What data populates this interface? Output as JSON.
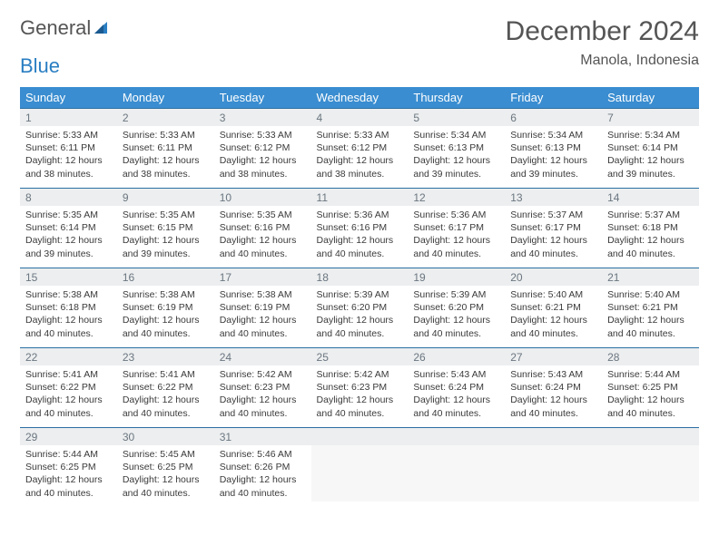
{
  "logo": {
    "text1": "General",
    "text2": "Blue"
  },
  "title": "December 2024",
  "location": "Manola, Indonesia",
  "colors": {
    "header_bg": "#3a8dd0",
    "header_text": "#ffffff",
    "daynum_bg": "#eceeef",
    "daynum_text": "#6b7680",
    "border": "#2a6fa3",
    "logo_blue": "#2a7ec2"
  },
  "weekdays": [
    "Sunday",
    "Monday",
    "Tuesday",
    "Wednesday",
    "Thursday",
    "Friday",
    "Saturday"
  ],
  "grid": [
    [
      {
        "n": "1",
        "sr": "Sunrise: 5:33 AM",
        "ss": "Sunset: 6:11 PM",
        "dl": "Daylight: 12 hours and 38 minutes."
      },
      {
        "n": "2",
        "sr": "Sunrise: 5:33 AM",
        "ss": "Sunset: 6:11 PM",
        "dl": "Daylight: 12 hours and 38 minutes."
      },
      {
        "n": "3",
        "sr": "Sunrise: 5:33 AM",
        "ss": "Sunset: 6:12 PM",
        "dl": "Daylight: 12 hours and 38 minutes."
      },
      {
        "n": "4",
        "sr": "Sunrise: 5:33 AM",
        "ss": "Sunset: 6:12 PM",
        "dl": "Daylight: 12 hours and 38 minutes."
      },
      {
        "n": "5",
        "sr": "Sunrise: 5:34 AM",
        "ss": "Sunset: 6:13 PM",
        "dl": "Daylight: 12 hours and 39 minutes."
      },
      {
        "n": "6",
        "sr": "Sunrise: 5:34 AM",
        "ss": "Sunset: 6:13 PM",
        "dl": "Daylight: 12 hours and 39 minutes."
      },
      {
        "n": "7",
        "sr": "Sunrise: 5:34 AM",
        "ss": "Sunset: 6:14 PM",
        "dl": "Daylight: 12 hours and 39 minutes."
      }
    ],
    [
      {
        "n": "8",
        "sr": "Sunrise: 5:35 AM",
        "ss": "Sunset: 6:14 PM",
        "dl": "Daylight: 12 hours and 39 minutes."
      },
      {
        "n": "9",
        "sr": "Sunrise: 5:35 AM",
        "ss": "Sunset: 6:15 PM",
        "dl": "Daylight: 12 hours and 39 minutes."
      },
      {
        "n": "10",
        "sr": "Sunrise: 5:35 AM",
        "ss": "Sunset: 6:16 PM",
        "dl": "Daylight: 12 hours and 40 minutes."
      },
      {
        "n": "11",
        "sr": "Sunrise: 5:36 AM",
        "ss": "Sunset: 6:16 PM",
        "dl": "Daylight: 12 hours and 40 minutes."
      },
      {
        "n": "12",
        "sr": "Sunrise: 5:36 AM",
        "ss": "Sunset: 6:17 PM",
        "dl": "Daylight: 12 hours and 40 minutes."
      },
      {
        "n": "13",
        "sr": "Sunrise: 5:37 AM",
        "ss": "Sunset: 6:17 PM",
        "dl": "Daylight: 12 hours and 40 minutes."
      },
      {
        "n": "14",
        "sr": "Sunrise: 5:37 AM",
        "ss": "Sunset: 6:18 PM",
        "dl": "Daylight: 12 hours and 40 minutes."
      }
    ],
    [
      {
        "n": "15",
        "sr": "Sunrise: 5:38 AM",
        "ss": "Sunset: 6:18 PM",
        "dl": "Daylight: 12 hours and 40 minutes."
      },
      {
        "n": "16",
        "sr": "Sunrise: 5:38 AM",
        "ss": "Sunset: 6:19 PM",
        "dl": "Daylight: 12 hours and 40 minutes."
      },
      {
        "n": "17",
        "sr": "Sunrise: 5:38 AM",
        "ss": "Sunset: 6:19 PM",
        "dl": "Daylight: 12 hours and 40 minutes."
      },
      {
        "n": "18",
        "sr": "Sunrise: 5:39 AM",
        "ss": "Sunset: 6:20 PM",
        "dl": "Daylight: 12 hours and 40 minutes."
      },
      {
        "n": "19",
        "sr": "Sunrise: 5:39 AM",
        "ss": "Sunset: 6:20 PM",
        "dl": "Daylight: 12 hours and 40 minutes."
      },
      {
        "n": "20",
        "sr": "Sunrise: 5:40 AM",
        "ss": "Sunset: 6:21 PM",
        "dl": "Daylight: 12 hours and 40 minutes."
      },
      {
        "n": "21",
        "sr": "Sunrise: 5:40 AM",
        "ss": "Sunset: 6:21 PM",
        "dl": "Daylight: 12 hours and 40 minutes."
      }
    ],
    [
      {
        "n": "22",
        "sr": "Sunrise: 5:41 AM",
        "ss": "Sunset: 6:22 PM",
        "dl": "Daylight: 12 hours and 40 minutes."
      },
      {
        "n": "23",
        "sr": "Sunrise: 5:41 AM",
        "ss": "Sunset: 6:22 PM",
        "dl": "Daylight: 12 hours and 40 minutes."
      },
      {
        "n": "24",
        "sr": "Sunrise: 5:42 AM",
        "ss": "Sunset: 6:23 PM",
        "dl": "Daylight: 12 hours and 40 minutes."
      },
      {
        "n": "25",
        "sr": "Sunrise: 5:42 AM",
        "ss": "Sunset: 6:23 PM",
        "dl": "Daylight: 12 hours and 40 minutes."
      },
      {
        "n": "26",
        "sr": "Sunrise: 5:43 AM",
        "ss": "Sunset: 6:24 PM",
        "dl": "Daylight: 12 hours and 40 minutes."
      },
      {
        "n": "27",
        "sr": "Sunrise: 5:43 AM",
        "ss": "Sunset: 6:24 PM",
        "dl": "Daylight: 12 hours and 40 minutes."
      },
      {
        "n": "28",
        "sr": "Sunrise: 5:44 AM",
        "ss": "Sunset: 6:25 PM",
        "dl": "Daylight: 12 hours and 40 minutes."
      }
    ],
    [
      {
        "n": "29",
        "sr": "Sunrise: 5:44 AM",
        "ss": "Sunset: 6:25 PM",
        "dl": "Daylight: 12 hours and 40 minutes."
      },
      {
        "n": "30",
        "sr": "Sunrise: 5:45 AM",
        "ss": "Sunset: 6:25 PM",
        "dl": "Daylight: 12 hours and 40 minutes."
      },
      {
        "n": "31",
        "sr": "Sunrise: 5:46 AM",
        "ss": "Sunset: 6:26 PM",
        "dl": "Daylight: 12 hours and 40 minutes."
      },
      {
        "empty": true
      },
      {
        "empty": true
      },
      {
        "empty": true
      },
      {
        "empty": true
      }
    ]
  ]
}
